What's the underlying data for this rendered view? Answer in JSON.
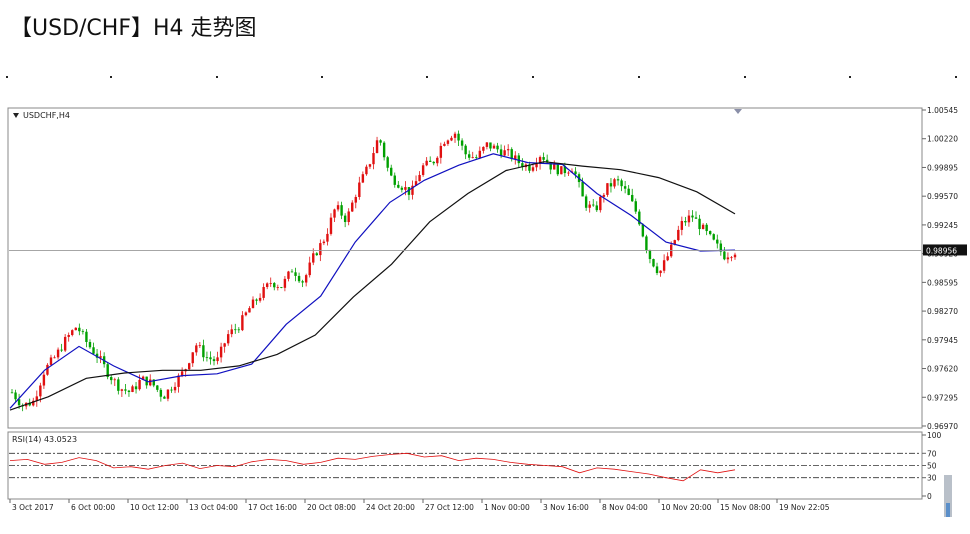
{
  "page_title": "【USD/CHF】H4 走势图",
  "chart_data": {
    "type": "candlestick",
    "symbol_label": "USDCHF,H4",
    "price_axis": {
      "ticks": [
        "1.00545",
        "1.00220",
        "0.99895",
        "0.99570",
        "0.99245",
        "0.98920",
        "0.98595",
        "0.98270",
        "0.97945",
        "0.97620",
        "0.97295",
        "0.96970"
      ],
      "current_price": "0.98956",
      "ylim": [
        0.9697,
        1.00545
      ]
    },
    "time_axis": [
      "3 Oct 2017",
      "6 Oct 00:00",
      "10 Oct 12:00",
      "13 Oct 04:00",
      "17 Oct 16:00",
      "20 Oct 08:00",
      "24 Oct 20:00",
      "27 Oct 12:00",
      "1 Nov 00:00",
      "3 Nov 16:00",
      "8 Nov 04:00",
      "10 Nov 20:00",
      "15 Nov 08:00",
      "19 Nov 22:05"
    ],
    "price_anchors": [
      0.9735,
      0.972,
      0.9725,
      0.976,
      0.9775,
      0.9795,
      0.981,
      0.979,
      0.9775,
      0.9755,
      0.974,
      0.9735,
      0.975,
      0.9745,
      0.973,
      0.9745,
      0.976,
      0.979,
      0.9775,
      0.977,
      0.98,
      0.981,
      0.983,
      0.9845,
      0.986,
      0.9855,
      0.9875,
      0.986,
      0.989,
      0.991,
      0.9945,
      0.993,
      0.9965,
      0.999,
      1.0025,
      0.998,
      0.997,
      0.996,
      0.999,
      0.9995,
      1.002,
      1.003,
      1.0005,
      1.0,
      1.0015,
      1.001,
      1.0005,
      0.9995,
      0.999,
      1.0005,
      0.999,
      0.9985,
      0.999,
      0.995,
      0.994,
      0.9965,
      0.9975,
      0.996,
      0.9935,
      0.989,
      0.987,
      0.9895,
      0.9925,
      0.9935,
      0.992,
      0.9905,
      0.989,
      0.9895
    ],
    "series": [
      {
        "name": "USDCHF,H4",
        "color_up": "#e01010",
        "color_down": "#00a000"
      },
      {
        "color": "#1010c0",
        "y": [
          0.9717,
          0.976,
          0.9787,
          0.9765,
          0.9747,
          0.9754,
          0.9756,
          0.9767,
          0.9812,
          0.9844,
          0.9905,
          0.995,
          0.9975,
          0.9992,
          1.0005,
          0.9995,
          0.9993,
          0.996,
          0.9935,
          0.9905,
          0.9895,
          0.9896
        ]
      },
      {
        "color": "#111111",
        "y": [
          0.9715,
          0.973,
          0.9751,
          0.9757,
          0.976,
          0.976,
          0.9765,
          0.9778,
          0.98,
          0.9843,
          0.988,
          0.9928,
          0.996,
          0.9986,
          0.9996,
          0.9991,
          0.9987,
          0.9978,
          0.9962,
          0.9937
        ]
      }
    ],
    "rsi": {
      "label": "RSI(14) 43.0523",
      "ticks": [
        "100",
        "70",
        "50",
        "30",
        "0"
      ],
      "levels": [
        70,
        50,
        30
      ],
      "values": [
        58,
        60,
        52,
        55,
        63,
        58,
        46,
        48,
        44,
        50,
        54,
        45,
        50,
        48,
        56,
        60,
        58,
        52,
        55,
        62,
        60,
        65,
        68,
        70,
        64,
        66,
        58,
        62,
        60,
        55,
        52,
        50,
        48,
        38,
        46,
        44,
        40,
        36,
        30,
        25,
        43,
        38,
        43
      ]
    }
  }
}
